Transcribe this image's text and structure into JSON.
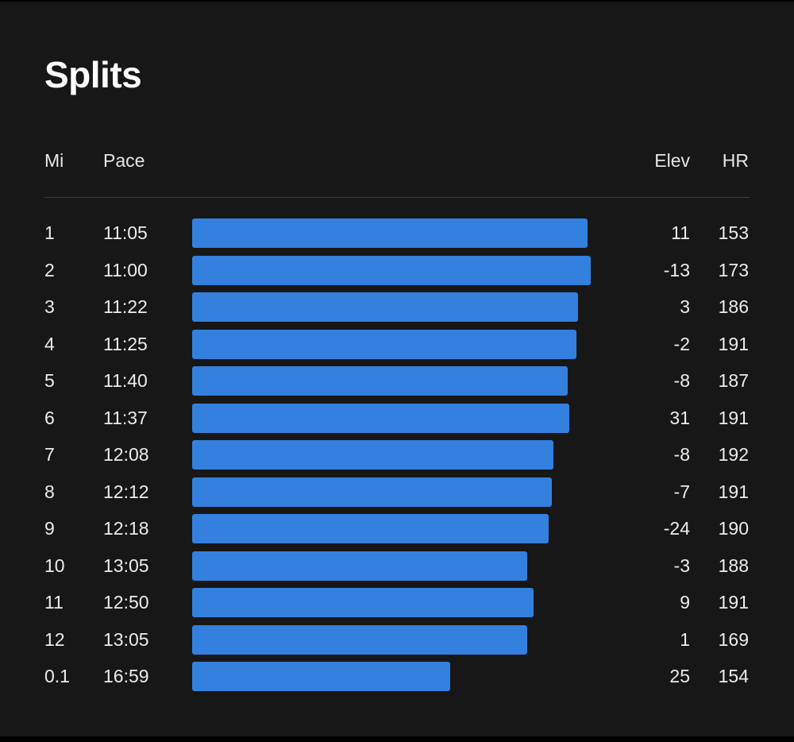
{
  "title": "Splits",
  "headers": {
    "mi": "Mi",
    "pace": "Pace",
    "elev": "Elev",
    "hr": "HR"
  },
  "splits": [
    {
      "mi": "1",
      "pace": "11:05",
      "elev": "11",
      "hr": "153"
    },
    {
      "mi": "2",
      "pace": "11:00",
      "elev": "-13",
      "hr": "173"
    },
    {
      "mi": "3",
      "pace": "11:22",
      "elev": "3",
      "hr": "186"
    },
    {
      "mi": "4",
      "pace": "11:25",
      "elev": "-2",
      "hr": "191"
    },
    {
      "mi": "5",
      "pace": "11:40",
      "elev": "-8",
      "hr": "187"
    },
    {
      "mi": "6",
      "pace": "11:37",
      "elev": "31",
      "hr": "191"
    },
    {
      "mi": "7",
      "pace": "12:08",
      "elev": "-8",
      "hr": "192"
    },
    {
      "mi": "8",
      "pace": "12:12",
      "elev": "-7",
      "hr": "191"
    },
    {
      "mi": "9",
      "pace": "12:18",
      "elev": "-24",
      "hr": "190"
    },
    {
      "mi": "10",
      "pace": "13:05",
      "elev": "-3",
      "hr": "188"
    },
    {
      "mi": "11",
      "pace": "12:50",
      "elev": "9",
      "hr": "191"
    },
    {
      "mi": "12",
      "pace": "13:05",
      "elev": "1",
      "hr": "169"
    },
    {
      "mi": "0.1",
      "pace": "16:59",
      "elev": "25",
      "hr": "154"
    }
  ],
  "colors": {
    "bar": "#3380de",
    "background": "#171717",
    "text": "#ececec"
  }
}
